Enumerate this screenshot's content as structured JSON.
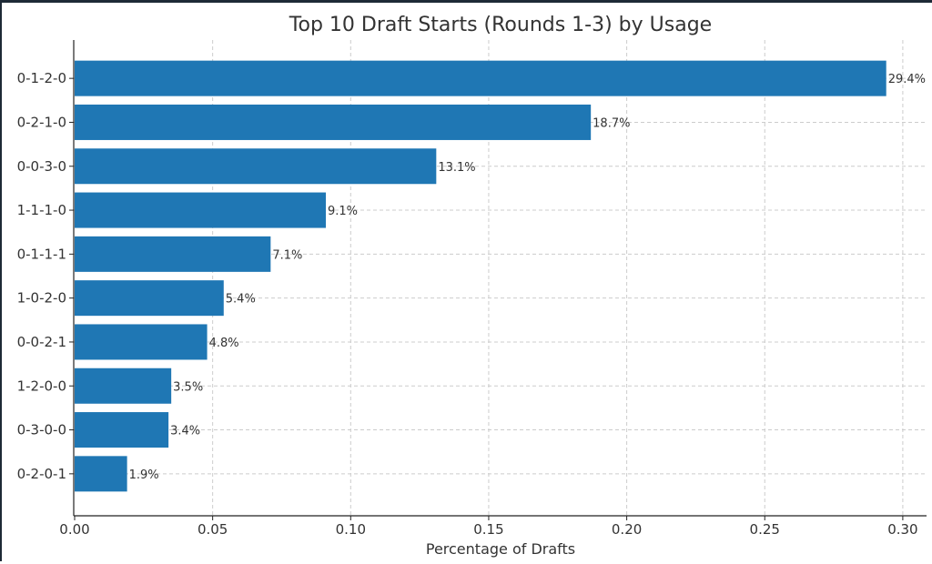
{
  "chart_data": {
    "type": "bar",
    "orientation": "horizontal",
    "title": "Top 10 Draft Starts (Rounds 1-3) by Usage",
    "xlabel": "Percentage of Drafts",
    "ylabel": "",
    "categories": [
      "0-1-2-0",
      "0-2-1-0",
      "0-0-3-0",
      "1-1-1-0",
      "0-1-1-1",
      "1-0-2-0",
      "0-0-2-1",
      "1-2-0-0",
      "0-3-0-0",
      "0-2-0-1"
    ],
    "values": [
      0.294,
      0.187,
      0.131,
      0.091,
      0.071,
      0.054,
      0.048,
      0.035,
      0.034,
      0.019
    ],
    "data_labels": [
      "29.4%",
      "18.7%",
      "13.1%",
      "9.1%",
      "7.1%",
      "5.4%",
      "4.8%",
      "3.5%",
      "3.4%",
      "1.9%"
    ],
    "xlim": [
      0,
      0.31
    ],
    "xticks": [
      0.0,
      0.05,
      0.1,
      0.15,
      0.2,
      0.25,
      0.3
    ],
    "xtick_labels": [
      "0.00",
      "0.05",
      "0.10",
      "0.15",
      "0.20",
      "0.25",
      "0.30"
    ],
    "grid": true,
    "bar_color": "#1f77b4"
  }
}
